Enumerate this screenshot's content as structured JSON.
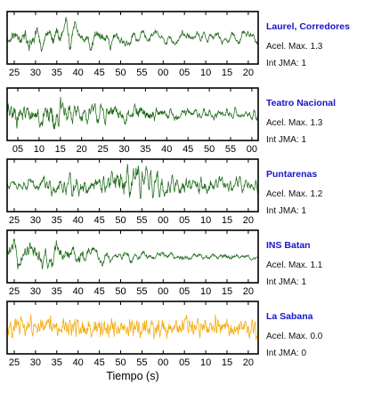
{
  "chart_data": {
    "type": "line",
    "xlabel": "Tiempo (s)",
    "panels": [
      {
        "station": "Laurel, Corredores",
        "acel_label": "Acel. Max. 1.3",
        "int_label": "Int JMA: 1",
        "color": "#1f6b1a",
        "ticks": [
          "25",
          "30",
          "35",
          "40",
          "45",
          "50",
          "55",
          "00",
          "05",
          "10",
          "15",
          "20"
        ],
        "profile": [
          0.55,
          0.7,
          0.8,
          0.85,
          0.9,
          0.85,
          0.75,
          0.65,
          0.55,
          0.5,
          0.45,
          0.4,
          0.4,
          0.4,
          0.38,
          0.4,
          0.45,
          0.4,
          0.35,
          0.35
        ],
        "smooth": 5
      },
      {
        "station": "Teatro Nacional",
        "acel_label": "Acel. Max. 1.3",
        "int_label": "Int JMA: 1",
        "color": "#1f6b1a",
        "ticks": [
          "05",
          "10",
          "15",
          "20",
          "25",
          "30",
          "35",
          "40",
          "45",
          "50",
          "55",
          "00"
        ],
        "profile": [
          0.6,
          0.65,
          0.7,
          0.85,
          0.75,
          0.7,
          0.6,
          0.55,
          0.6,
          0.5,
          0.45,
          0.4,
          0.35,
          0.35,
          0.3,
          0.3,
          0.28,
          0.3,
          0.28,
          0.3
        ],
        "smooth": 2
      },
      {
        "station": "Puntarenas",
        "acel_label": "Acel. Max. 1.2",
        "int_label": "Int JMA: 1",
        "color": "#1f6b1a",
        "ticks": [
          "25",
          "30",
          "35",
          "40",
          "45",
          "50",
          "55",
          "00",
          "05",
          "10",
          "15",
          "20"
        ],
        "profile": [
          0.3,
          0.35,
          0.45,
          0.5,
          0.55,
          0.6,
          0.6,
          0.55,
          0.85,
          0.9,
          1.0,
          0.9,
          0.7,
          0.6,
          0.55,
          0.5,
          0.45,
          0.45,
          0.4,
          0.4
        ],
        "smooth": 2
      },
      {
        "station": "INS Batan",
        "acel_label": "Acel. Max. 1.1",
        "int_label": "Int JMA: 1",
        "color": "#1f6b1a",
        "ticks": [
          "25",
          "30",
          "35",
          "40",
          "45",
          "50",
          "55",
          "00",
          "05",
          "10",
          "15",
          "20"
        ],
        "profile": [
          0.85,
          0.75,
          0.7,
          0.65,
          0.7,
          0.6,
          0.55,
          0.45,
          0.3,
          0.3,
          0.28,
          0.25,
          0.25,
          0.22,
          0.22,
          0.2,
          0.2,
          0.2,
          0.18,
          0.18
        ],
        "smooth": 4
      },
      {
        "station": "La Sabana",
        "acel_label": "Acel. Max. 0.0",
        "int_label": "Int JMA: 0",
        "color": "#f5a800",
        "ticks": [
          "25",
          "30",
          "35",
          "40",
          "45",
          "50",
          "55",
          "00",
          "05",
          "10",
          "15",
          "20"
        ],
        "profile": [
          0.55,
          0.6,
          0.55,
          0.6,
          0.55,
          0.6,
          0.6,
          0.55,
          0.6,
          0.55,
          0.6,
          0.55,
          0.6,
          0.55,
          0.6,
          0.55,
          0.6,
          0.55,
          0.6,
          0.55
        ],
        "smooth": 1
      }
    ]
  }
}
